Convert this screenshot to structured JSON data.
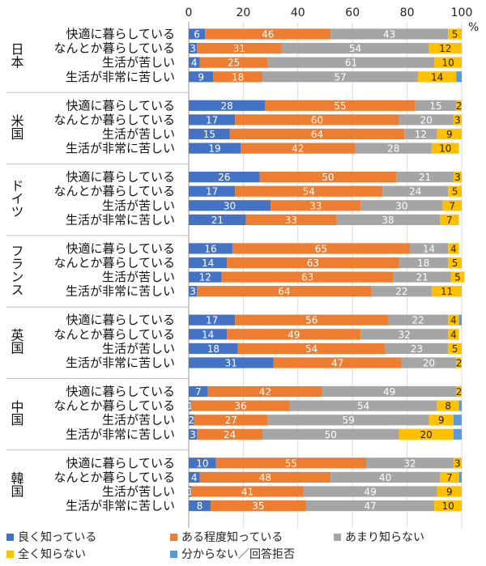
{
  "chart_data": {
    "type": "bar",
    "stacked": true,
    "orientation": "horizontal",
    "xlim": [
      0,
      100
    ],
    "x_ticks": [
      "0",
      "20",
      "40",
      "60",
      "80",
      "100"
    ],
    "x_unit": "%",
    "grid": true,
    "legend_position": "bottom",
    "series": [
      {
        "name": "良く知っている",
        "color": "#4472C4"
      },
      {
        "name": "ある程度知っている",
        "color": "#ED7D31"
      },
      {
        "name": "あまり知らない",
        "color": "#A5A5A5"
      },
      {
        "name": "全く知らない",
        "color": "#FFC000"
      },
      {
        "name": "分からない／回答拒否",
        "color": "#5B9BD5"
      }
    ],
    "groups": [
      {
        "name": "日本",
        "rows": [
          {
            "label": "快適に暮らしている",
            "values": [
              6,
              46,
              43,
              5,
              0
            ]
          },
          {
            "label": "なんとか暮らしている",
            "values": [
              3,
              31,
              54,
              12,
              0
            ]
          },
          {
            "label": "生活が苦しい",
            "values": [
              4,
              25,
              61,
              10,
              0
            ]
          },
          {
            "label": "生活が非常に苦しい",
            "values": [
              9,
              18,
              57,
              14,
              2
            ]
          }
        ]
      },
      {
        "name": "米国",
        "rows": [
          {
            "label": "快適に暮らしている",
            "values": [
              28,
              55,
              15,
              2,
              0
            ]
          },
          {
            "label": "なんとか暮らしている",
            "values": [
              17,
              60,
              20,
              3,
              0
            ]
          },
          {
            "label": "生活が苦しい",
            "values": [
              15,
              64,
              12,
              9,
              0
            ]
          },
          {
            "label": "生活が非常に苦しい",
            "values": [
              19,
              42,
              28,
              10,
              0
            ]
          }
        ]
      },
      {
        "name": "ドイツ",
        "rows": [
          {
            "label": "快適に暮らしている",
            "values": [
              26,
              50,
              21,
              3,
              0
            ]
          },
          {
            "label": "なんとか暮らしている",
            "values": [
              17,
              54,
              24,
              5,
              0
            ]
          },
          {
            "label": "生活が苦しい",
            "values": [
              30,
              33,
              30,
              7,
              0
            ]
          },
          {
            "label": "生活が非常に苦しい",
            "values": [
              21,
              33,
              38,
              7,
              0
            ]
          }
        ]
      },
      {
        "name": "フランス",
        "rows": [
          {
            "label": "快適に暮らしている",
            "values": [
              16,
              65,
              14,
              4,
              0
            ]
          },
          {
            "label": "なんとか暮らしている",
            "values": [
              14,
              63,
              18,
              5,
              0
            ]
          },
          {
            "label": "生活が苦しい",
            "values": [
              12,
              63,
              21,
              5,
              0
            ]
          },
          {
            "label": "生活が非常に苦しい",
            "values": [
              3,
              64,
              22,
              11,
              0
            ]
          }
        ]
      },
      {
        "name": "英国",
        "rows": [
          {
            "label": "快適に暮らしている",
            "values": [
              17,
              56,
              22,
              4,
              1
            ]
          },
          {
            "label": "なんとか暮らしている",
            "values": [
              14,
              49,
              32,
              4,
              0
            ]
          },
          {
            "label": "生活が苦しい",
            "values": [
              18,
              54,
              23,
              5,
              0
            ]
          },
          {
            "label": "生活が非常に苦しい",
            "values": [
              31,
              47,
              20,
              2,
              0
            ]
          }
        ]
      },
      {
        "name": "中国",
        "rows": [
          {
            "label": "快適に暮らしている",
            "values": [
              7,
              42,
              49,
              2,
              0
            ]
          },
          {
            "label": "なんとか暮らしている",
            "values": [
              1,
              36,
              54,
              8,
              1
            ]
          },
          {
            "label": "生活が苦しい",
            "values": [
              2,
              27,
              59,
              9,
              3
            ]
          },
          {
            "label": "生活が非常に苦しい",
            "values": [
              3,
              24,
              50,
              20,
              3
            ]
          }
        ]
      },
      {
        "name": "韓国",
        "rows": [
          {
            "label": "快適に暮らしている",
            "values": [
              10,
              55,
              32,
              3,
              0
            ]
          },
          {
            "label": "なんとか暮らしている",
            "values": [
              4,
              48,
              40,
              7,
              1
            ]
          },
          {
            "label": "生活が苦しい",
            "values": [
              1,
              41,
              49,
              9,
              0
            ]
          },
          {
            "label": "生活が非常に苦しい",
            "values": [
              8,
              35,
              47,
              10,
              0
            ]
          }
        ]
      }
    ],
    "hidden_labels": [
      [
        5,
        1,
        4
      ],
      [
        5,
        2,
        4
      ],
      [
        5,
        3,
        4
      ],
      [
        6,
        1,
        4
      ],
      [
        4,
        0,
        4
      ],
      [
        0,
        3,
        4
      ]
    ]
  }
}
